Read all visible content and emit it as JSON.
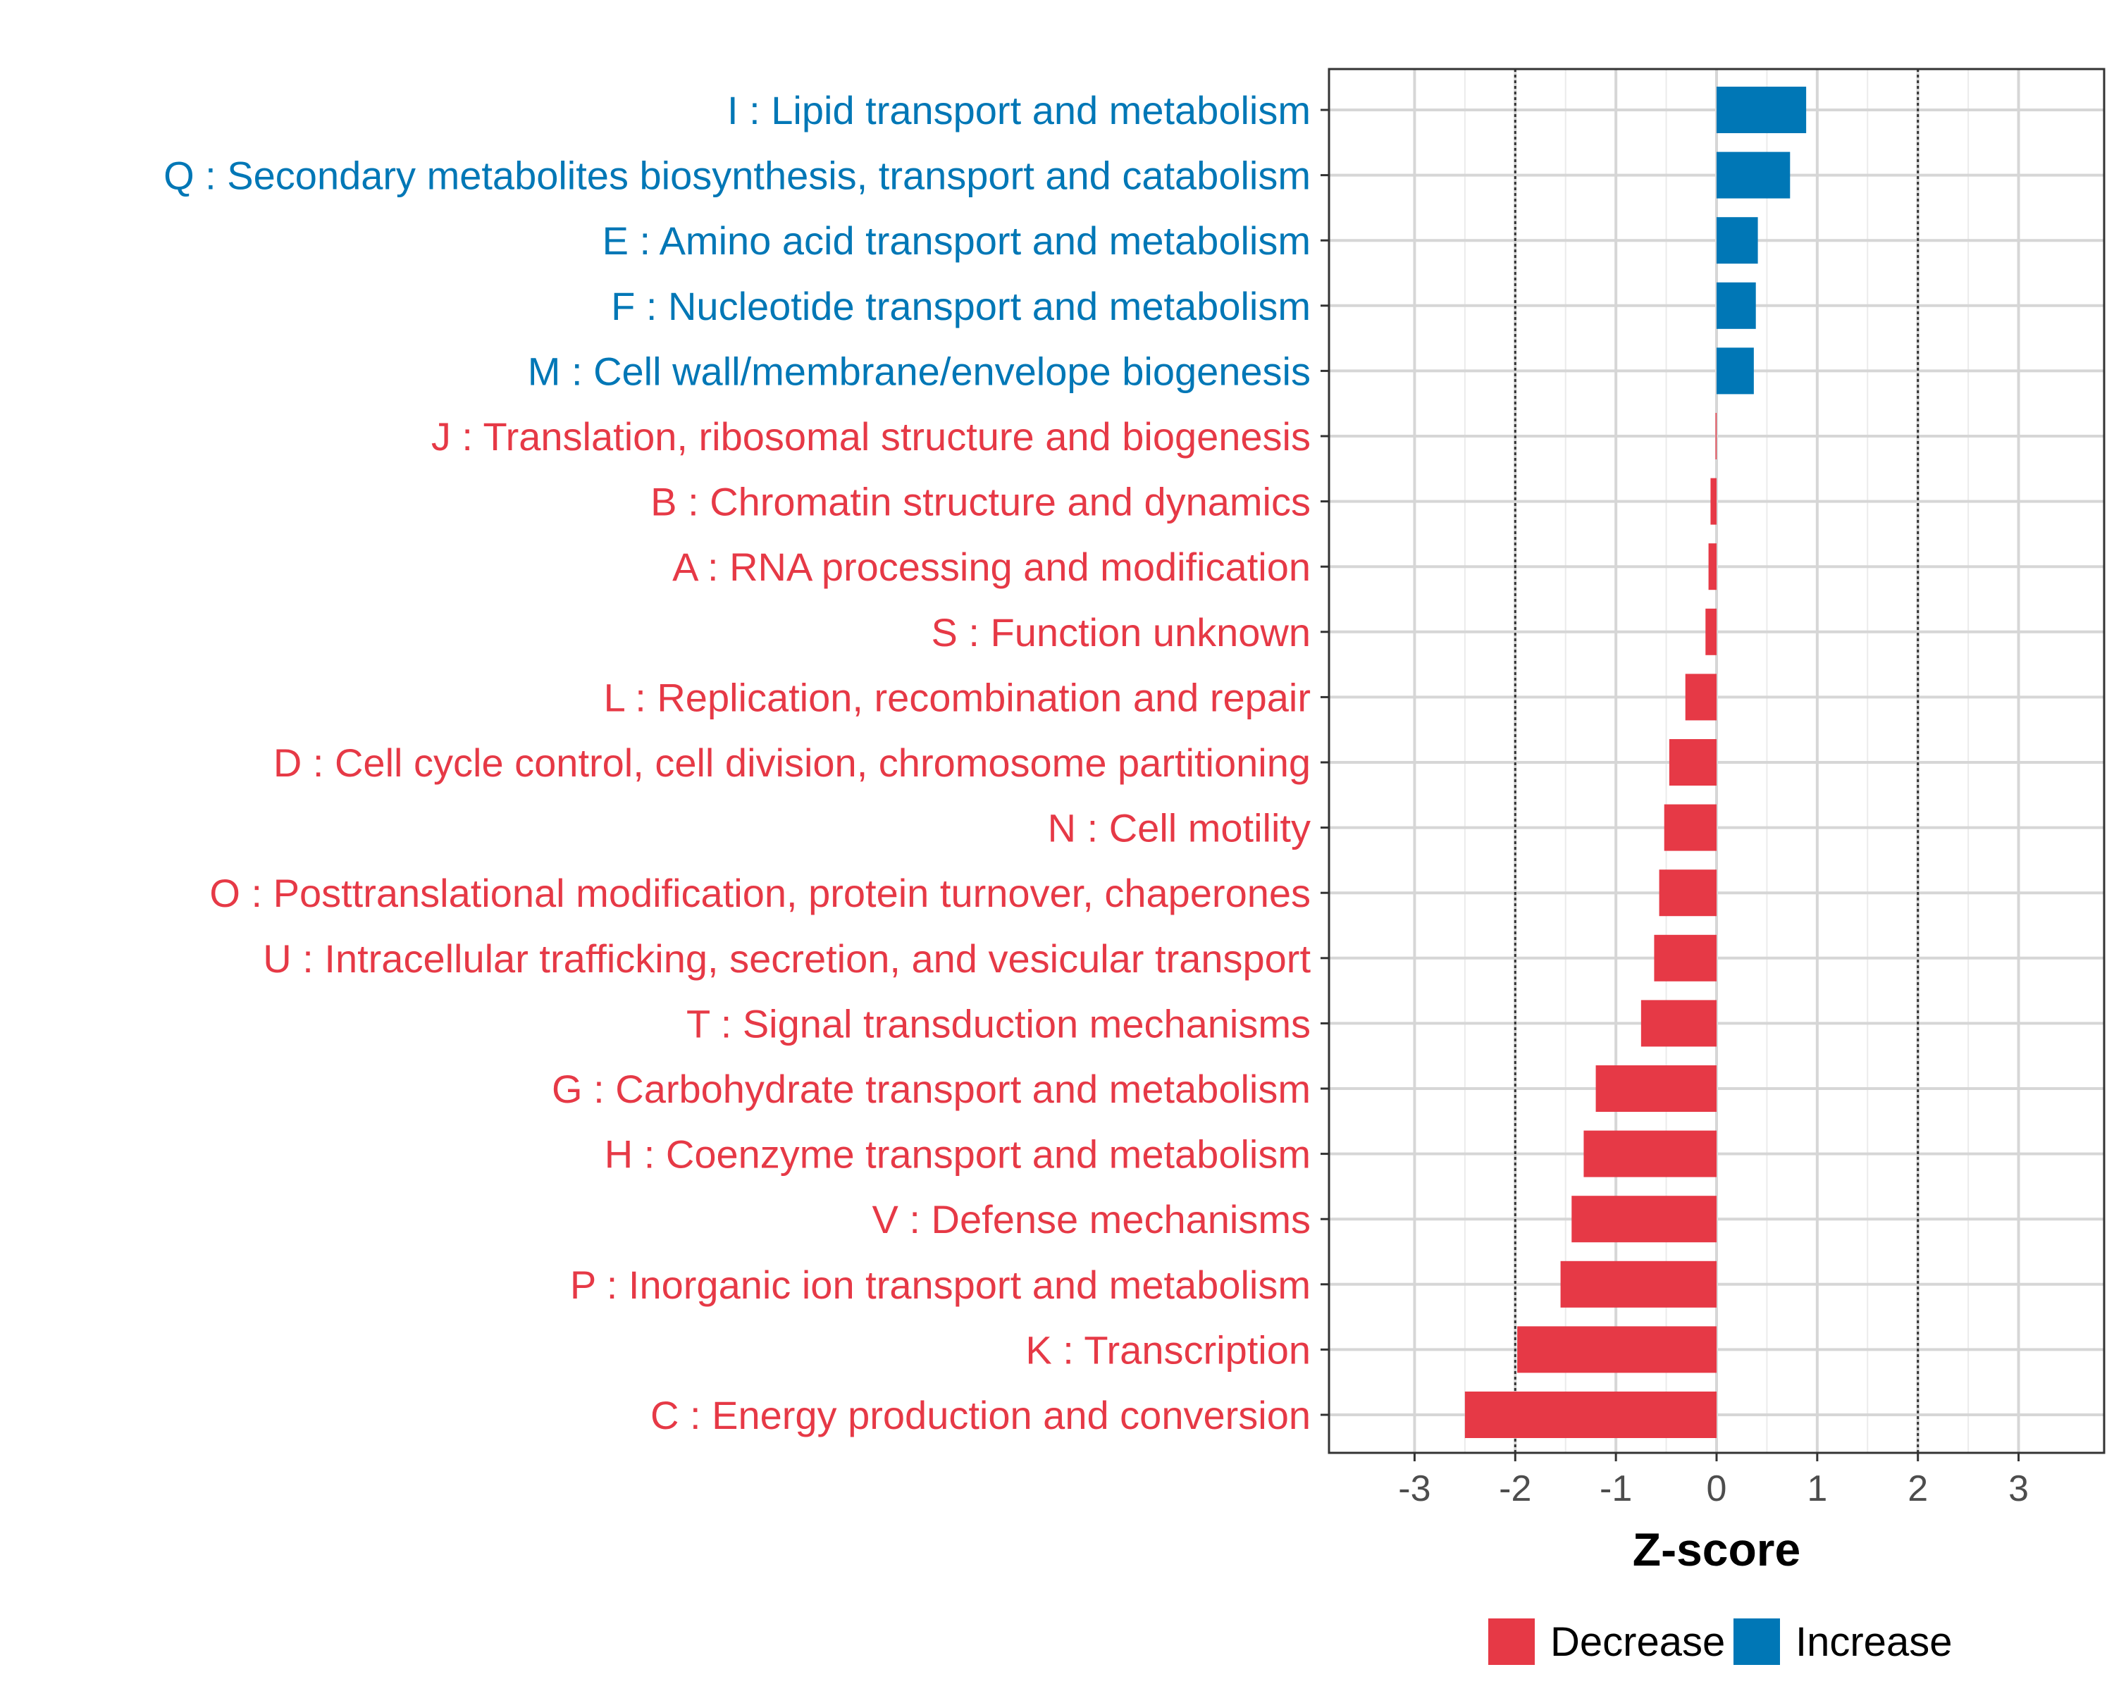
{
  "chart_data": {
    "type": "bar",
    "orientation": "horizontal",
    "title": "",
    "xlabel": "Z-score",
    "ylabel": "",
    "xlim": [
      -3.85,
      3.85
    ],
    "xticks": [
      -3,
      -2,
      -1,
      0,
      1,
      2,
      3
    ],
    "xtick_labels": [
      "-3",
      "-2",
      "-1",
      "0",
      "1",
      "2",
      "3"
    ],
    "reference_lines": [
      -2,
      2
    ],
    "grid": true,
    "legend_position": "bottom",
    "legend": [
      {
        "label": "Decrease",
        "color": "#E63946"
      },
      {
        "label": "Increase",
        "color": "#0077B6"
      }
    ],
    "colors": {
      "Decrease": "#E63946",
      "Increase": "#0077B6"
    },
    "categories": [
      {
        "label": "I : Lipid transport and metabolism",
        "value": 0.89,
        "direction": "Increase"
      },
      {
        "label": "Q : Secondary metabolites biosynthesis, transport and catabolism",
        "value": 0.73,
        "direction": "Increase"
      },
      {
        "label": "E : Amino acid transport and metabolism",
        "value": 0.41,
        "direction": "Increase"
      },
      {
        "label": "F : Nucleotide transport and metabolism",
        "value": 0.39,
        "direction": "Increase"
      },
      {
        "label": "M : Cell wall/membrane/envelope biogenesis",
        "value": 0.37,
        "direction": "Increase"
      },
      {
        "label": "J : Translation, ribosomal structure and biogenesis",
        "value": -0.01,
        "direction": "Decrease"
      },
      {
        "label": "B : Chromatin structure and dynamics",
        "value": -0.06,
        "direction": "Decrease"
      },
      {
        "label": "A : RNA processing and modification",
        "value": -0.08,
        "direction": "Decrease"
      },
      {
        "label": "S : Function unknown",
        "value": -0.11,
        "direction": "Decrease"
      },
      {
        "label": "L : Replication, recombination and repair",
        "value": -0.31,
        "direction": "Decrease"
      },
      {
        "label": "D : Cell cycle control, cell division, chromosome partitioning",
        "value": -0.47,
        "direction": "Decrease"
      },
      {
        "label": "N : Cell motility",
        "value": -0.52,
        "direction": "Decrease"
      },
      {
        "label": "O : Posttranslational modification, protein turnover, chaperones",
        "value": -0.57,
        "direction": "Decrease"
      },
      {
        "label": "U : Intracellular trafficking, secretion, and vesicular transport",
        "value": -0.62,
        "direction": "Decrease"
      },
      {
        "label": "T : Signal transduction mechanisms",
        "value": -0.75,
        "direction": "Decrease"
      },
      {
        "label": "G : Carbohydrate transport and metabolism",
        "value": -1.2,
        "direction": "Decrease"
      },
      {
        "label": "H : Coenzyme transport and metabolism",
        "value": -1.32,
        "direction": "Decrease"
      },
      {
        "label": "V : Defense mechanisms",
        "value": -1.44,
        "direction": "Decrease"
      },
      {
        "label": "P : Inorganic ion transport and metabolism",
        "value": -1.55,
        "direction": "Decrease"
      },
      {
        "label": "K : Transcription",
        "value": -1.98,
        "direction": "Decrease"
      },
      {
        "label": "C : Energy production and conversion",
        "value": -2.5,
        "direction": "Decrease"
      }
    ]
  }
}
